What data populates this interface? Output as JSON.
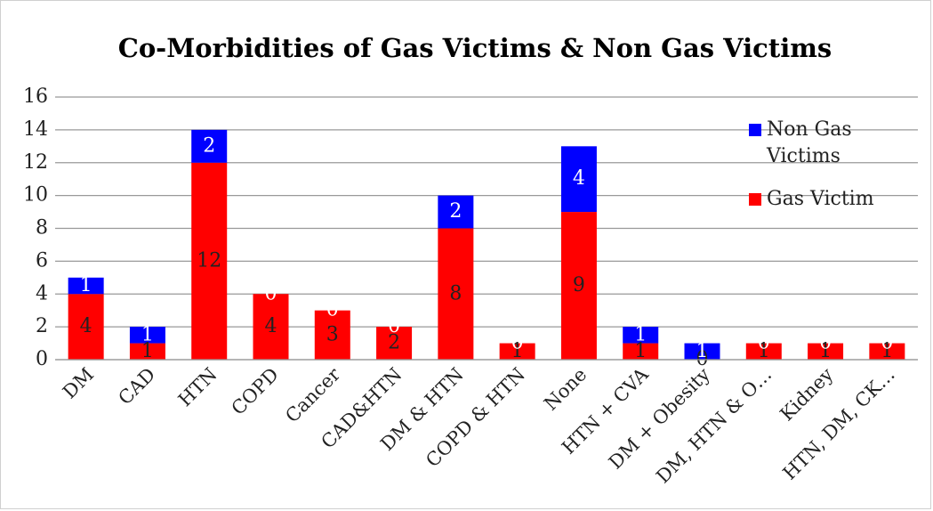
{
  "chart_data": {
    "type": "stacked_bar",
    "title": "Co-Morbidities of Gas Victims & Non Gas Victims",
    "categories": [
      "DM",
      "CAD",
      "HTN",
      "COPD",
      "Cancer",
      "CAD&HTN",
      "DM & HTN",
      "COPD & HTN",
      "None",
      "HTN + CVA",
      "DM + Obesity",
      "DM, HTN & O…",
      "Kidney",
      "HTN, DM, CK…"
    ],
    "series": [
      {
        "name": "Gas Victim",
        "color": "#ff0000",
        "label_color": "#222222",
        "values": [
          4,
          1,
          12,
          4,
          3,
          2,
          8,
          1,
          9,
          1,
          0,
          1,
          1,
          1
        ]
      },
      {
        "name": "Non Gas Victims",
        "color": "#0000ff",
        "label_color": "#ffffff",
        "values": [
          1,
          1,
          2,
          0,
          0,
          0,
          2,
          0,
          4,
          1,
          1,
          0,
          0,
          0
        ]
      }
    ],
    "ylim": [
      0,
      16
    ],
    "yticks": [
      0,
      2,
      4,
      6,
      8,
      10,
      12,
      14,
      16
    ],
    "grid": true,
    "legend": "right"
  }
}
